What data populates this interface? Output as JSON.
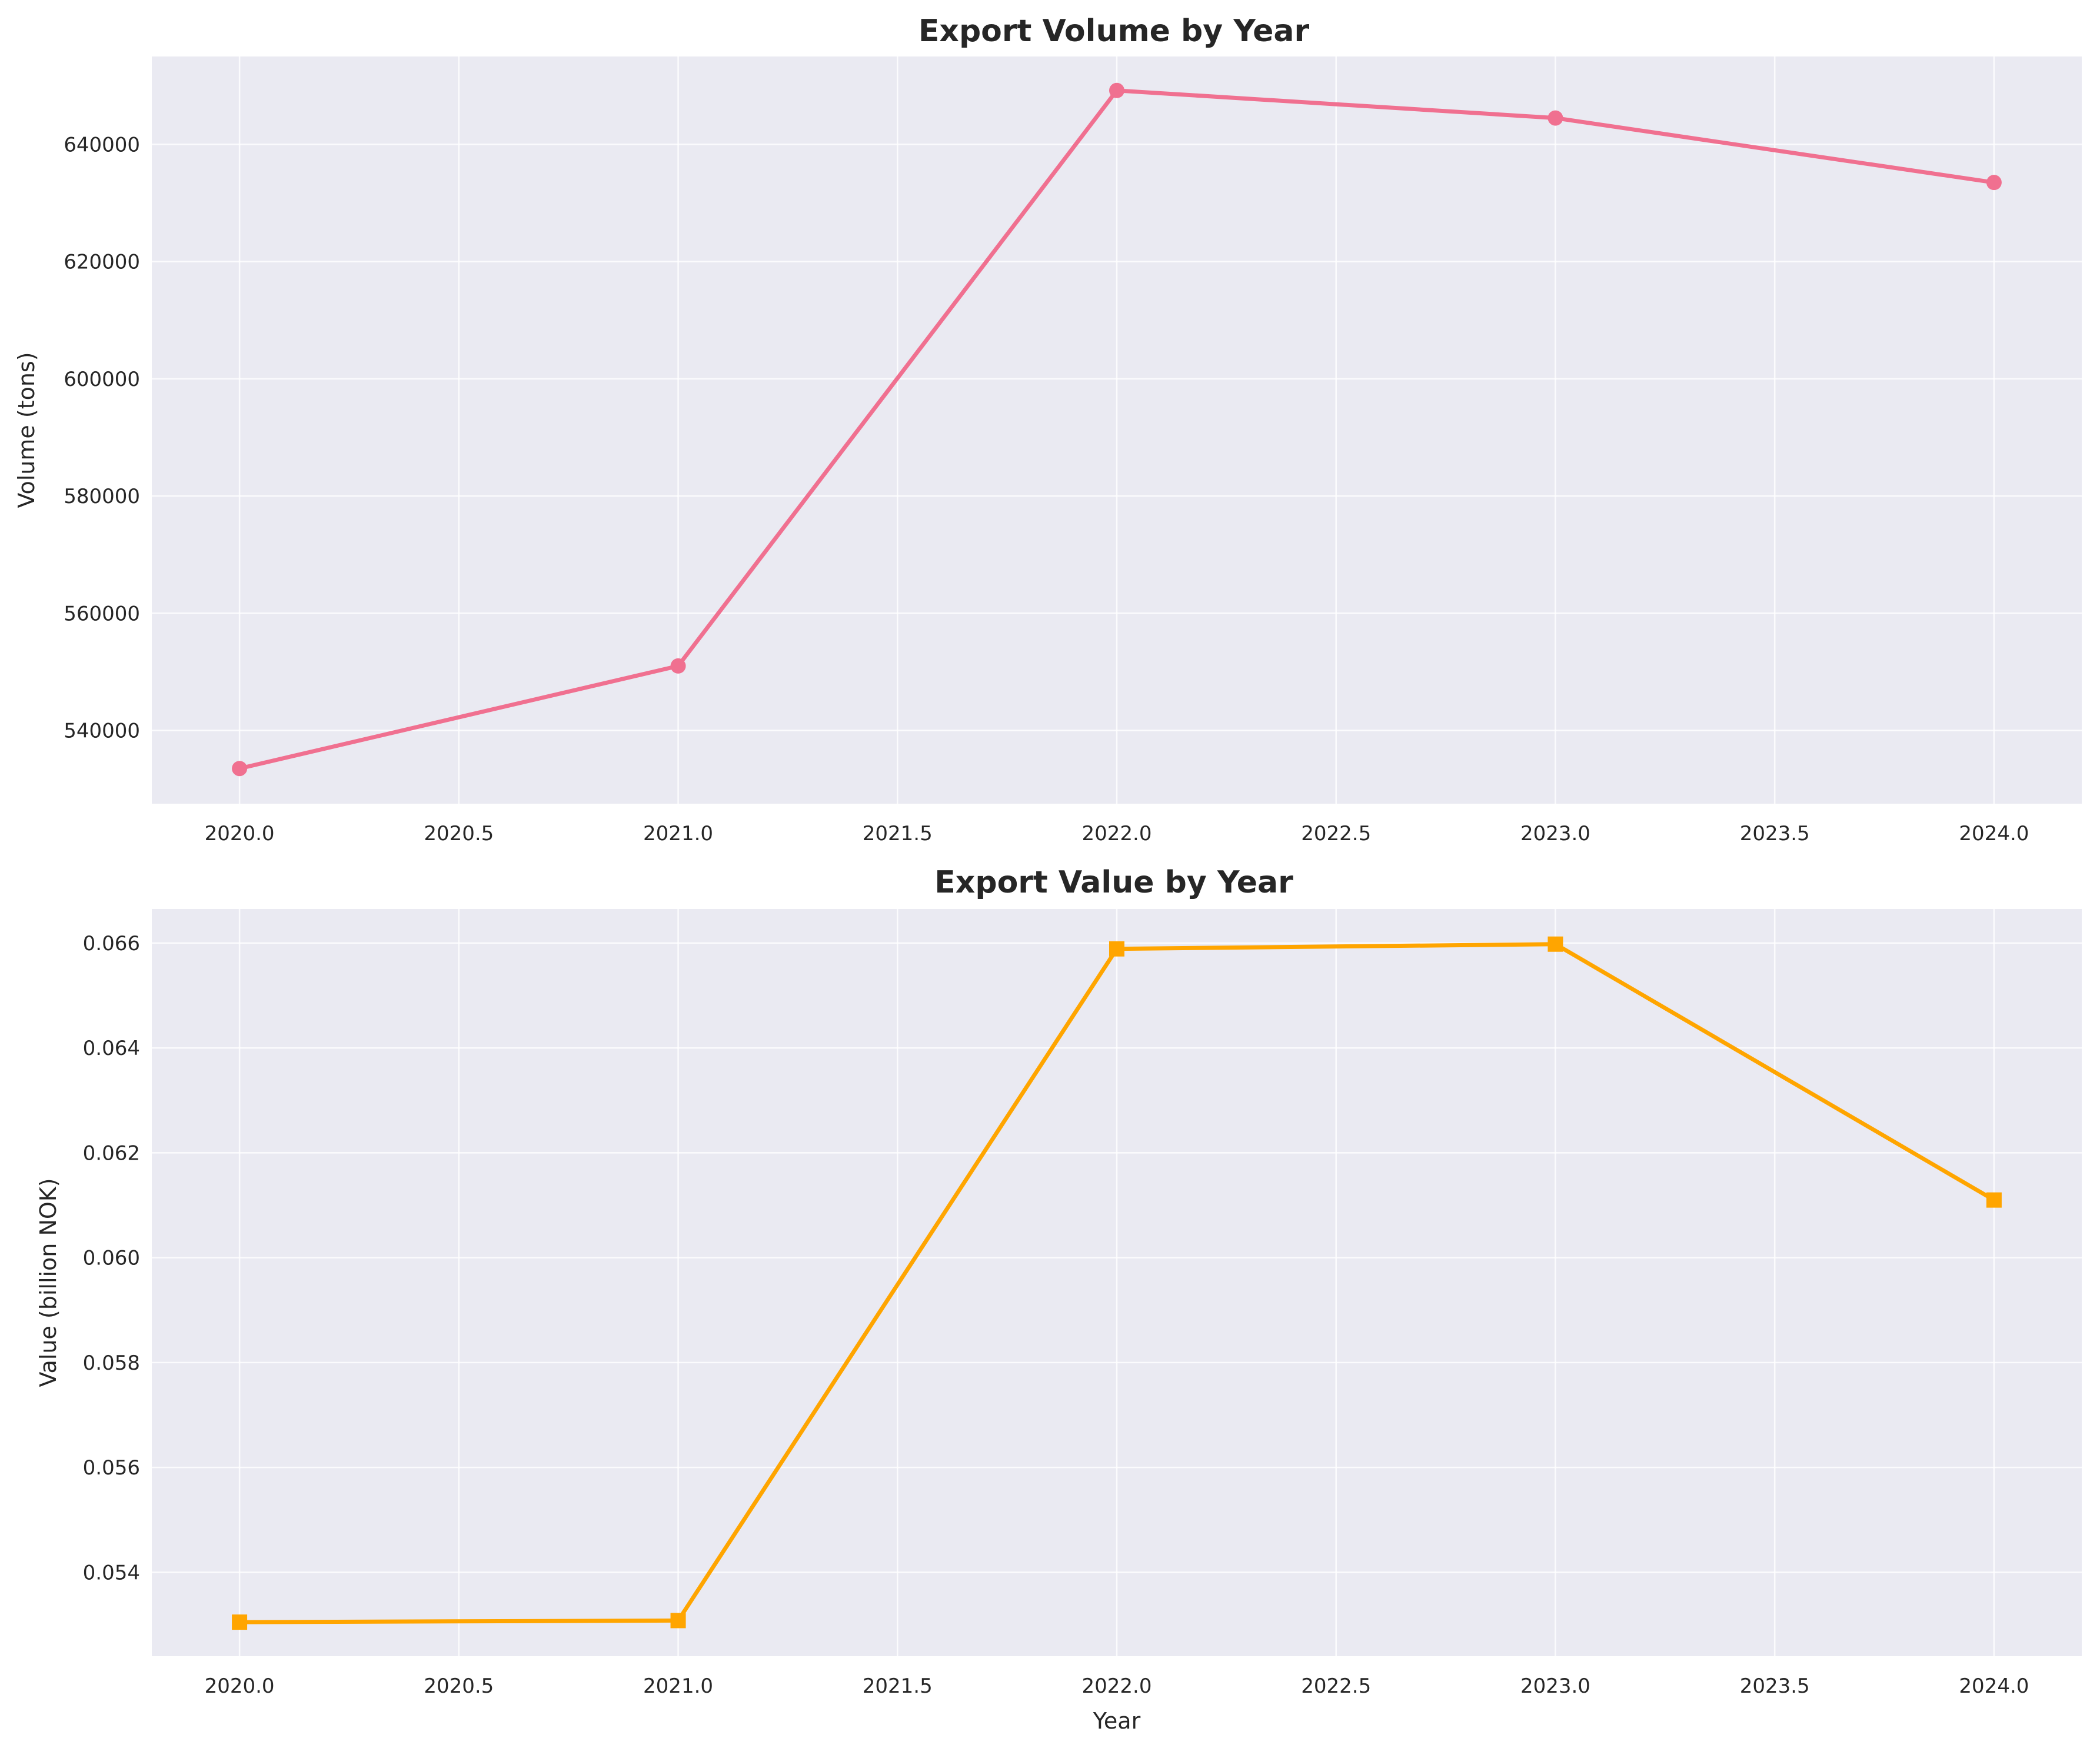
{
  "chart_data": [
    {
      "type": "line",
      "title": "Export Volume by Year",
      "xlabel": "",
      "ylabel": "Volume (tons)",
      "x": [
        2020,
        2021,
        2022,
        2023,
        2024
      ],
      "series": [
        {
          "values": [
            533500,
            551000,
            649200,
            644500,
            633500
          ],
          "color": "#f07090",
          "marker": "circle"
        }
      ],
      "xlim": [
        2019.8,
        2024.2
      ],
      "ylim": [
        527500,
        655000
      ],
      "xticks": [
        2020.0,
        2020.5,
        2021.0,
        2021.5,
        2022.0,
        2022.5,
        2023.0,
        2023.5,
        2024.0
      ],
      "xtick_labels": [
        "2020.0",
        "2020.5",
        "2021.0",
        "2021.5",
        "2022.0",
        "2022.5",
        "2023.0",
        "2023.5",
        "2024.0"
      ],
      "yticks": [
        540000,
        560000,
        580000,
        600000,
        620000,
        640000
      ],
      "ytick_labels": [
        "540000",
        "560000",
        "580000",
        "600000",
        "620000",
        "640000"
      ],
      "grid": true,
      "background": "#eaeaf2"
    },
    {
      "type": "line",
      "title": "Export Value by Year",
      "xlabel": "Year",
      "ylabel": "Value (billion NOK)",
      "x": [
        2020,
        2021,
        2022,
        2023,
        2024
      ],
      "series": [
        {
          "values": [
            0.05305,
            0.05308,
            0.06589,
            0.06598,
            0.0611
          ],
          "color": "#ffa500",
          "marker": "square"
        }
      ],
      "xlim": [
        2019.8,
        2024.2
      ],
      "ylim": [
        0.0524,
        0.06665
      ],
      "xticks": [
        2020.0,
        2020.5,
        2021.0,
        2021.5,
        2022.0,
        2022.5,
        2023.0,
        2023.5,
        2024.0
      ],
      "xtick_labels": [
        "2020.0",
        "2020.5",
        "2021.0",
        "2021.5",
        "2022.0",
        "2022.5",
        "2023.0",
        "2023.5",
        "2024.0"
      ],
      "yticks": [
        0.054,
        0.056,
        0.058,
        0.06,
        0.062,
        0.064,
        0.066
      ],
      "ytick_labels": [
        "0.054",
        "0.056",
        "0.058",
        "0.060",
        "0.062",
        "0.064",
        "0.066"
      ],
      "grid": true,
      "background": "#eaeaf2"
    }
  ]
}
